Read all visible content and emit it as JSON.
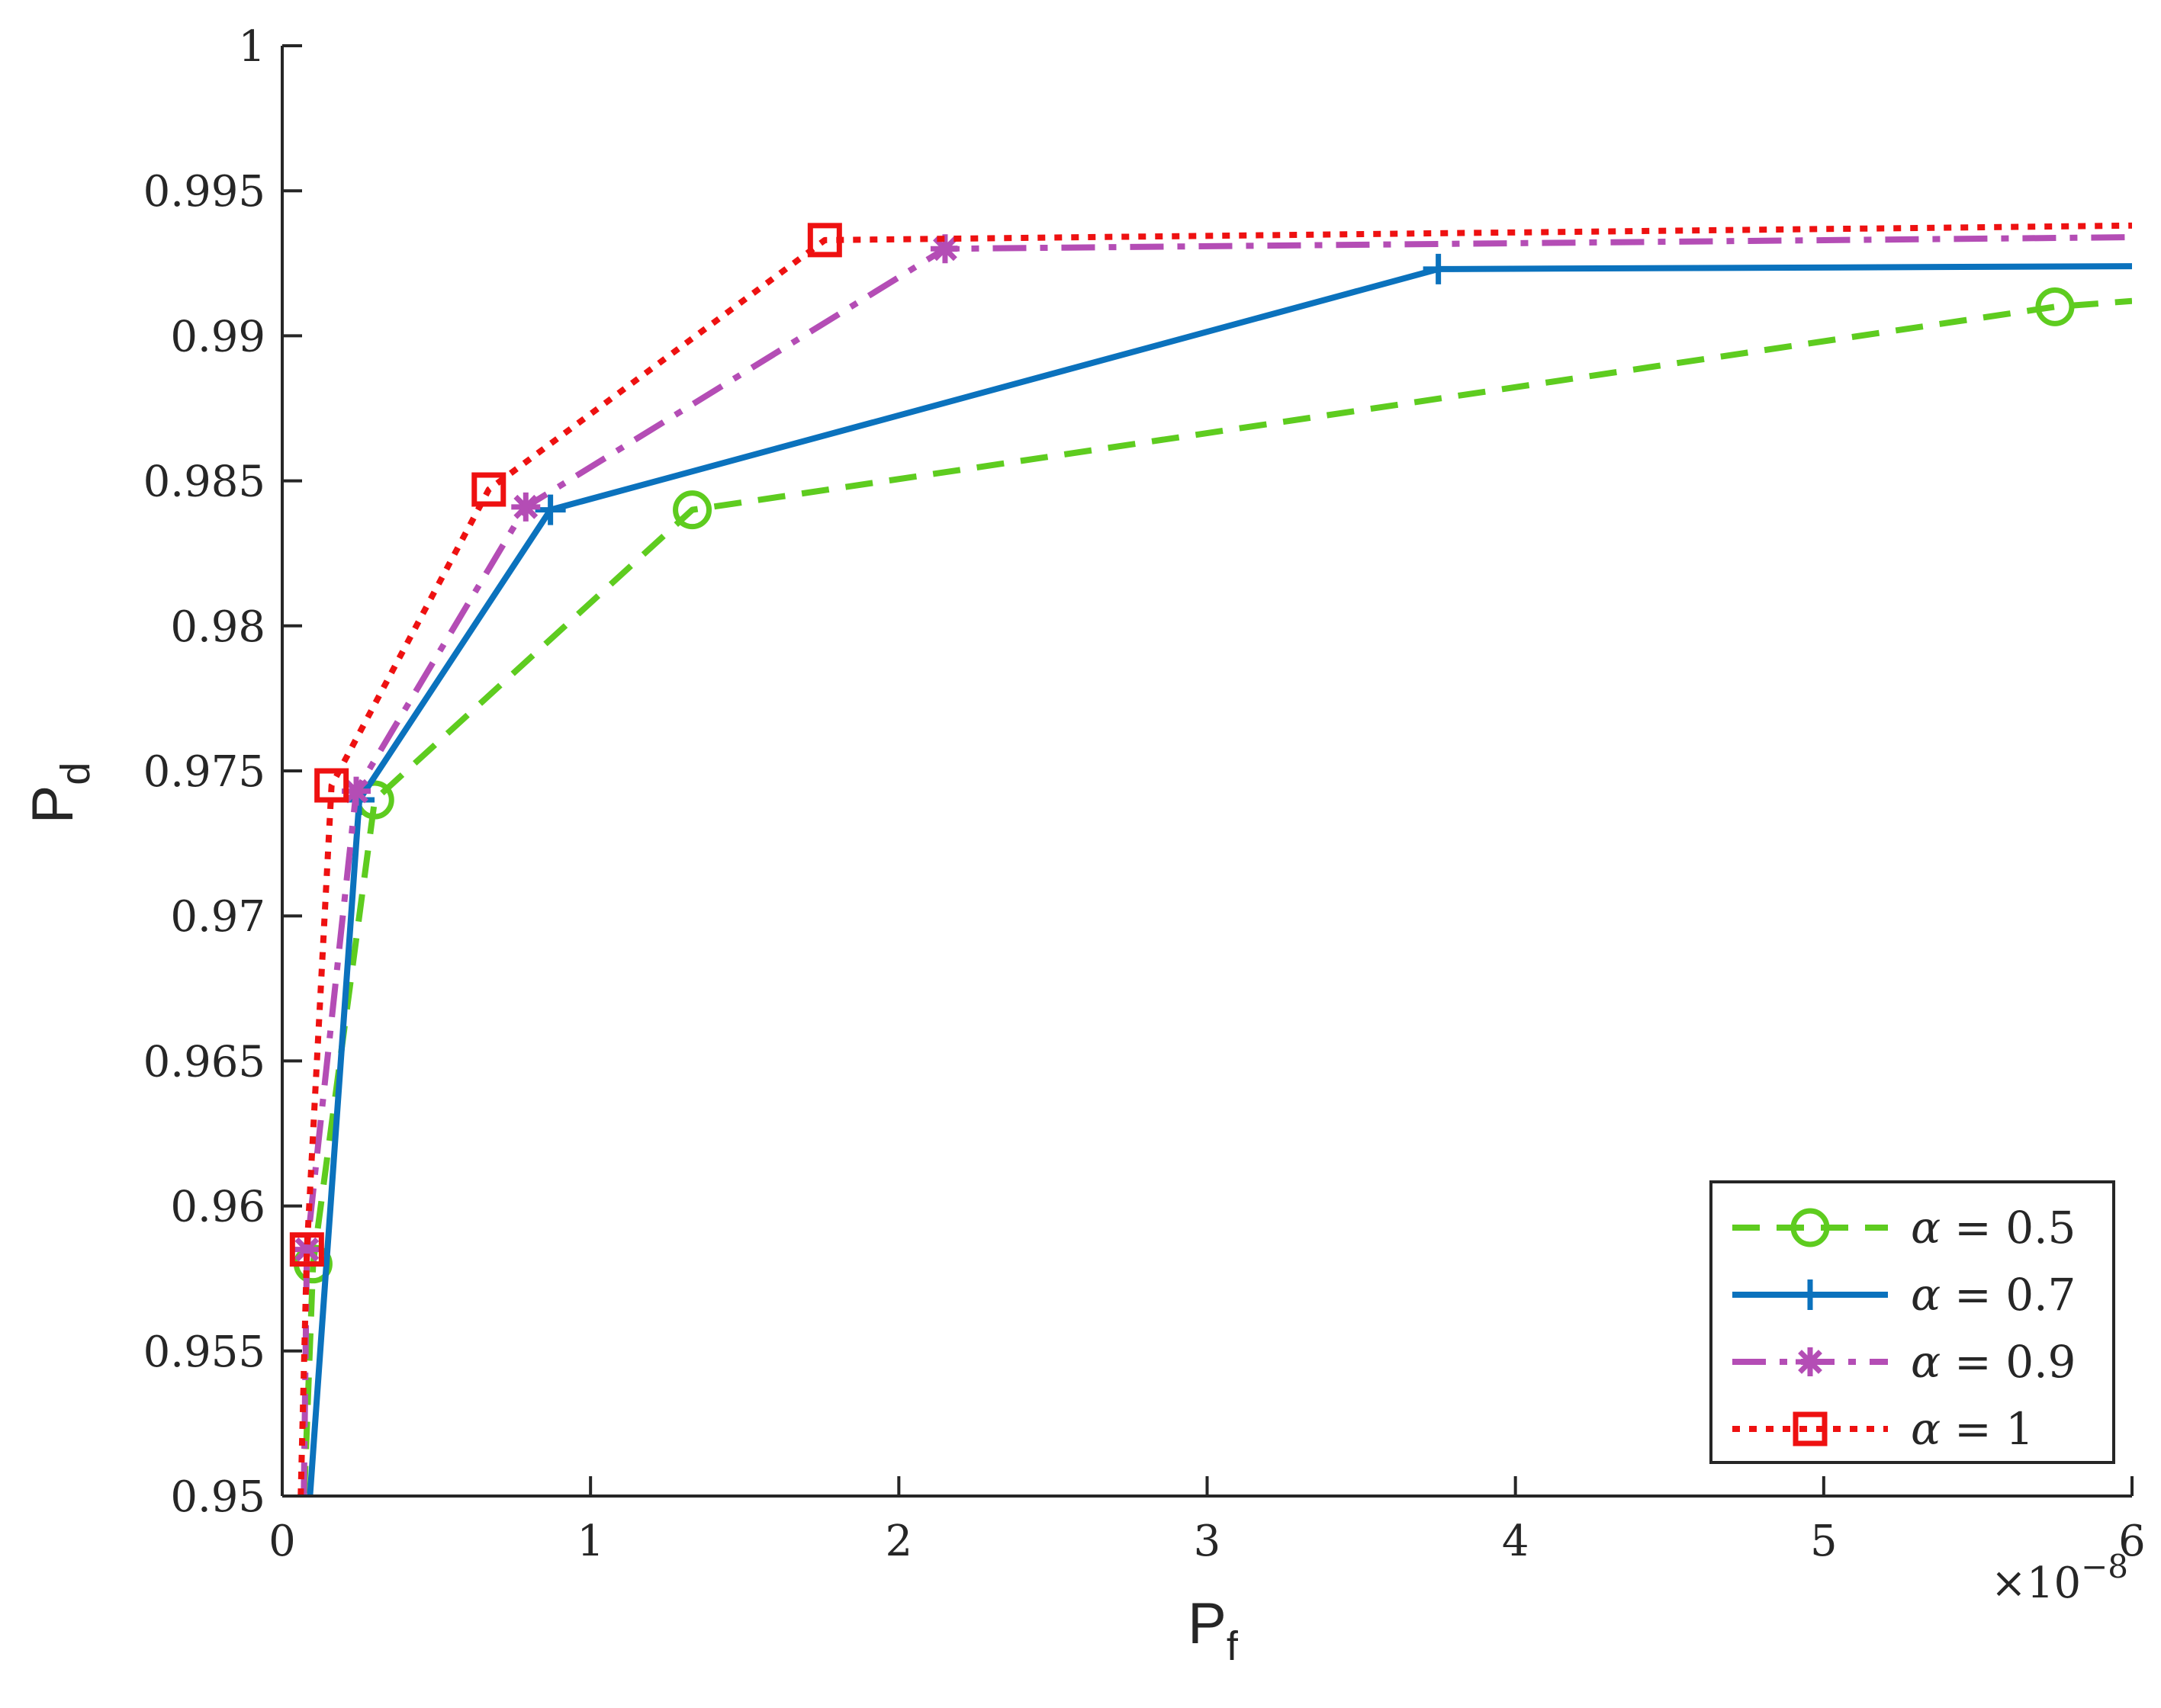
{
  "chart_data": {
    "type": "line",
    "xlabel": "P",
    "xlabel_sub": "f",
    "ylabel": "P",
    "ylabel_sub": "d",
    "x_exponent_label": "×10",
    "x_exponent_power": "−8",
    "xlim": [
      0,
      6
    ],
    "ylim": [
      0.95,
      1
    ],
    "xticks": [
      0,
      1,
      2,
      3,
      4,
      5,
      6
    ],
    "xtick_labels": [
      "0",
      "1",
      "2",
      "3",
      "4",
      "5",
      "6"
    ],
    "yticks": [
      0.95,
      0.955,
      0.96,
      0.965,
      0.97,
      0.975,
      0.98,
      0.985,
      0.99,
      0.995,
      1
    ],
    "ytick_labels": [
      "0.95",
      "0.955",
      "0.96",
      "0.965",
      "0.97",
      "0.975",
      "0.98",
      "0.985",
      "0.99",
      "0.995",
      "1"
    ],
    "grid": false,
    "legend_position": "bottom-right",
    "series": [
      {
        "name": "α = 0.5",
        "legend_symbol": "α",
        "legend_value": "= 0.5",
        "color": "#5ecc1f",
        "line_style": "dashed",
        "marker": "circle",
        "x": [
          0.05,
          0.1,
          0.3,
          1.33,
          5.75,
          6.0
        ],
        "y": [
          0.944,
          0.958,
          0.974,
          0.984,
          0.991,
          0.9912
        ],
        "marker_indices": [
          1,
          2,
          3,
          4
        ]
      },
      {
        "name": "α = 0.7",
        "legend_symbol": "α",
        "legend_value": "= 0.7",
        "color": "#0b72bd",
        "line_style": "solid",
        "marker": "plus",
        "x": [
          0.09,
          0.25,
          0.87,
          3.75,
          6.0
        ],
        "y": [
          0.95,
          0.974,
          0.984,
          0.9923,
          0.9924
        ],
        "marker_indices": [
          1,
          2,
          3
        ]
      },
      {
        "name": "α = 0.9",
        "legend_symbol": "α",
        "legend_value": "= 0.9",
        "color": "#b44db5",
        "line_style": "dashdot",
        "marker": "asterisk",
        "x": [
          0.07,
          0.08,
          0.24,
          0.79,
          2.15,
          6.0
        ],
        "y": [
          0.95,
          0.9585,
          0.9743,
          0.9841,
          0.993,
          0.9934
        ],
        "marker_indices": [
          1,
          2,
          3,
          4
        ]
      },
      {
        "name": "α = 1",
        "legend_symbol": "α",
        "legend_value": "= 1",
        "color": "#ee1111",
        "line_style": "dotted",
        "marker": "square",
        "x": [
          0.06,
          0.08,
          0.16,
          0.67,
          1.76,
          6.0
        ],
        "y": [
          0.95,
          0.9585,
          0.9745,
          0.9847,
          0.9933,
          0.9938
        ],
        "marker_indices": [
          1,
          2,
          3,
          4
        ]
      }
    ]
  }
}
